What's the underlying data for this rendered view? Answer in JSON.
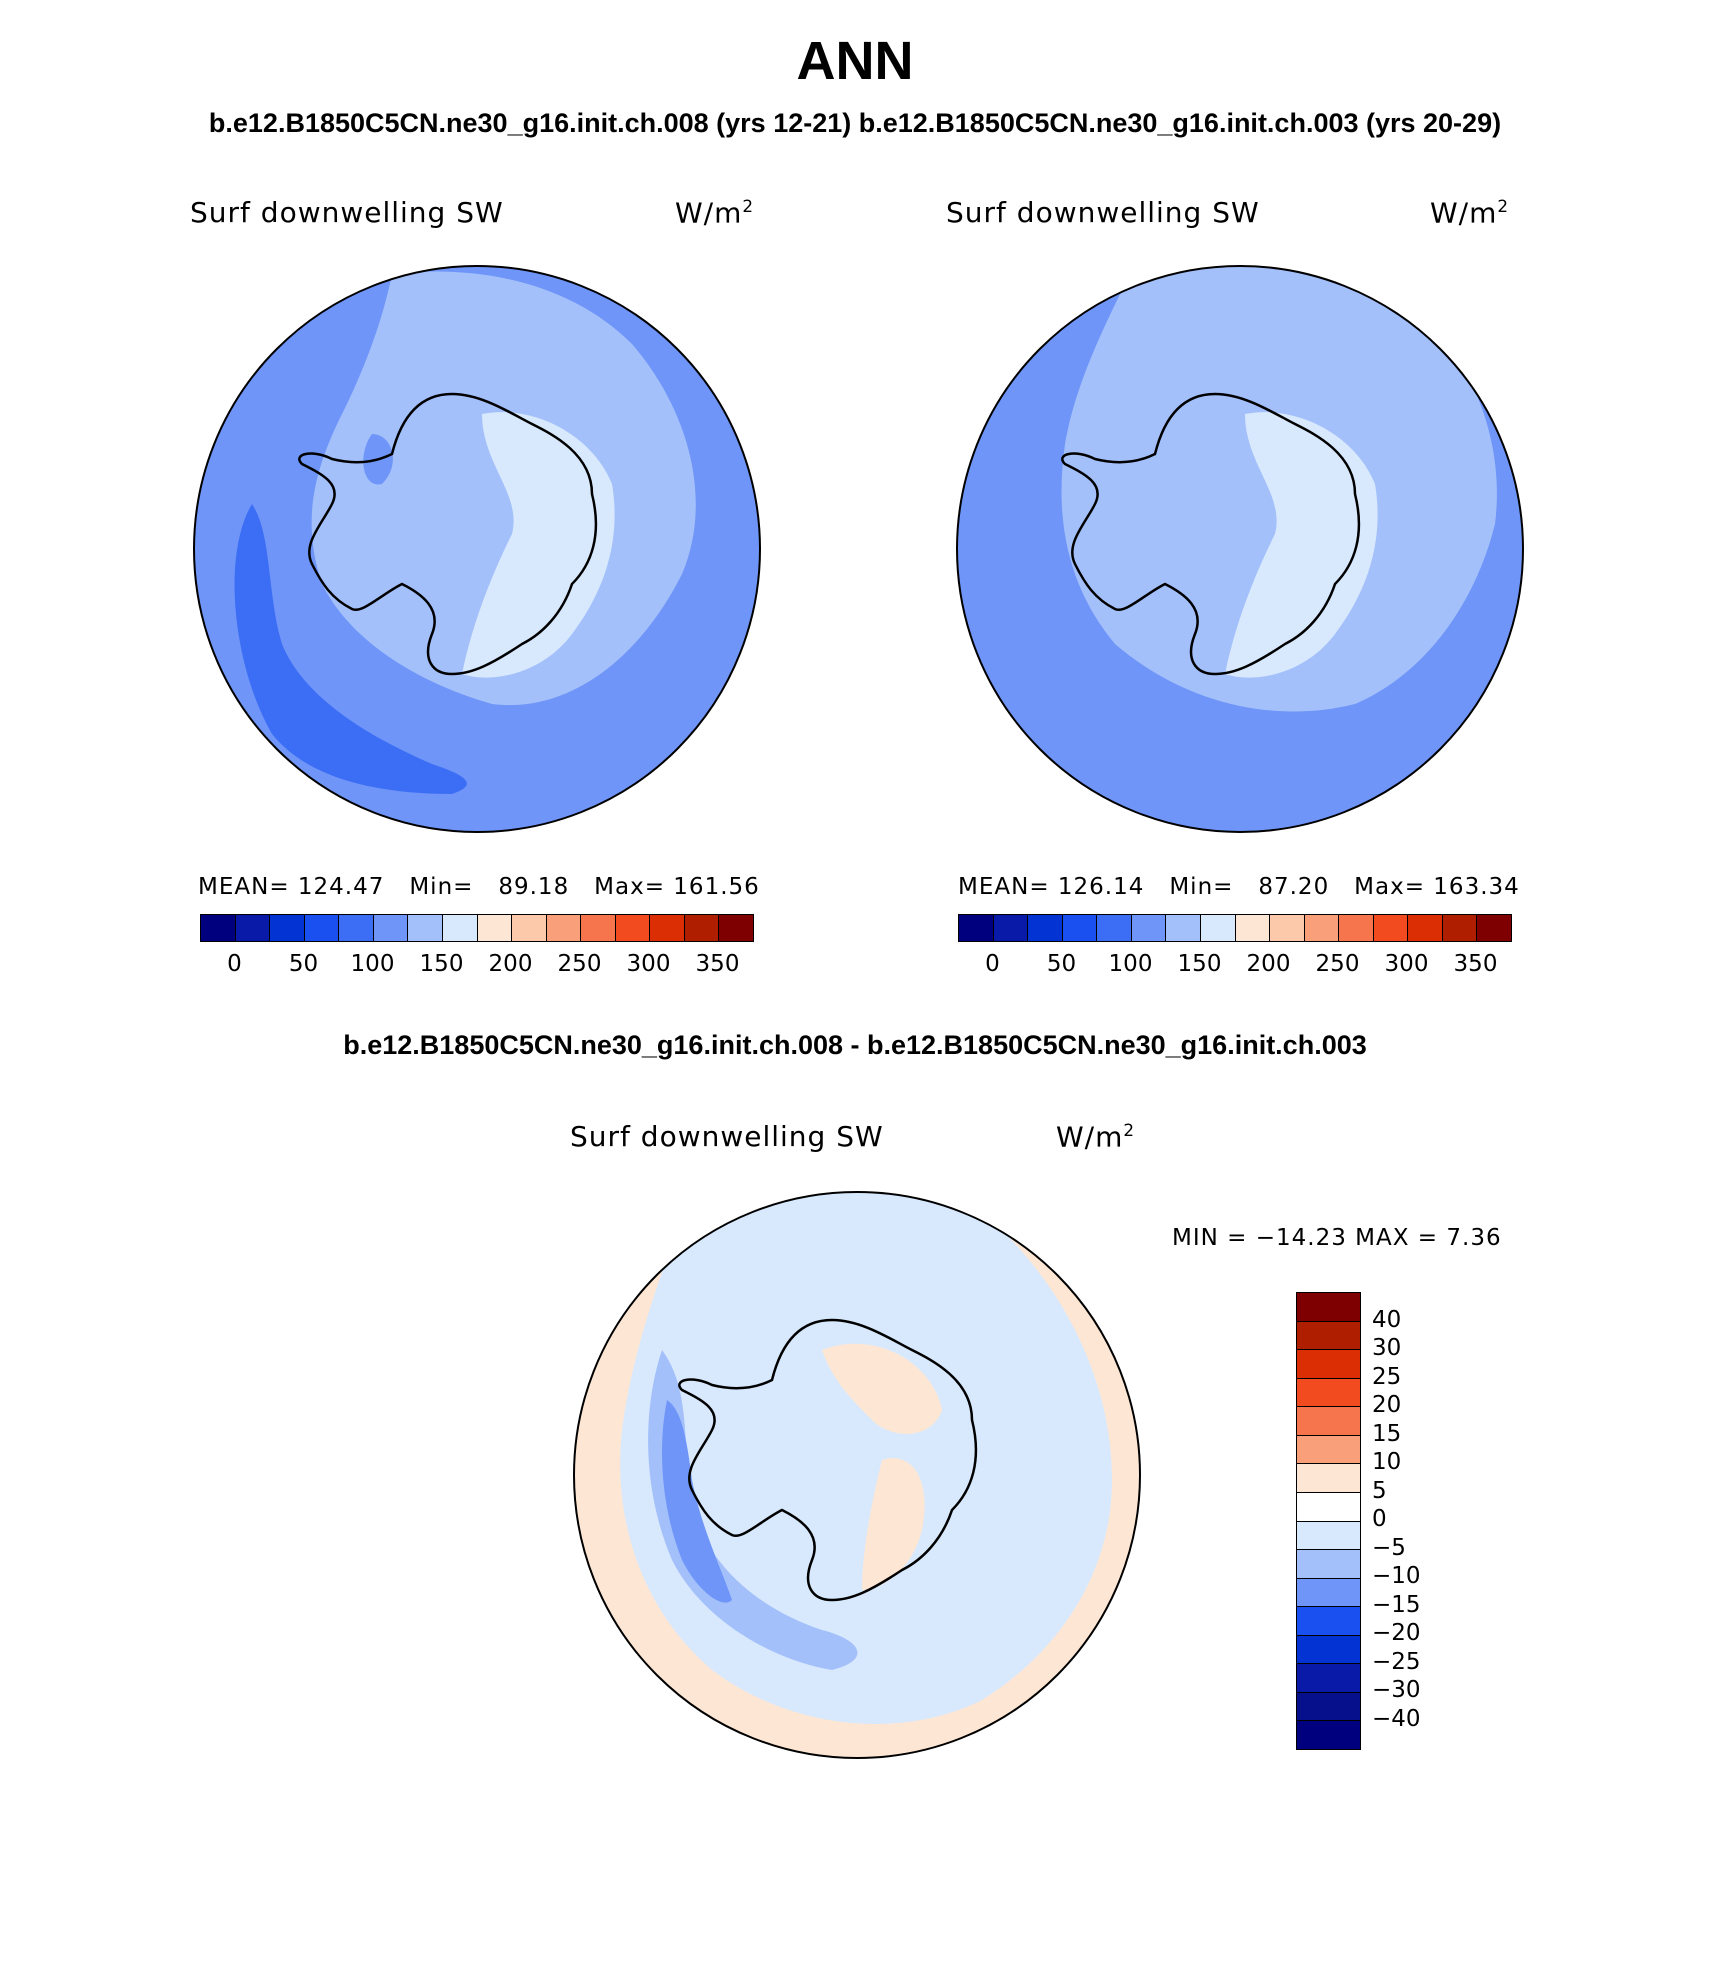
{
  "header": {
    "title": "ANN",
    "subtitle_top": "b.e12.B1850C5CN.ne30_g16.init.ch.008 (yrs 12-21) b.e12.B1850C5CN.ne30_g16.init.ch.003 (yrs 20-29)",
    "subtitle_diff": "b.e12.B1850C5CN.ne30_g16.init.ch.008 - b.e12.B1850C5CN.ne30_g16.init.ch.003"
  },
  "panels": {
    "left": {
      "variable": "Surf downwelling SW",
      "units_base": "W/m",
      "units_exp": "2",
      "mean_label": "MEAN=",
      "mean": "124.47",
      "min_label": "Min=",
      "min": "89.18",
      "max_label": "Max=",
      "max": "161.56"
    },
    "right": {
      "variable": "Surf downwelling SW",
      "units_base": "W/m",
      "units_exp": "2",
      "mean_label": "MEAN=",
      "mean": "126.14",
      "min_label": "Min=",
      "min": "87.20",
      "max_label": "Max=",
      "max": "163.34"
    },
    "diff": {
      "variable": "Surf downwelling SW",
      "units_base": "W/m",
      "units_exp": "2",
      "minmax": "MIN = −14.23 MAX =   7.36"
    }
  },
  "colorbar_abs": {
    "colors": [
      "#00007f",
      "#0a1aa8",
      "#0433d4",
      "#1a4ff0",
      "#3c6ef5",
      "#6e95f7",
      "#a4c0fb",
      "#d8e9fd",
      "#fde7d4",
      "#fcc9ab",
      "#f9a07a",
      "#f6754c",
      "#f24b20",
      "#dc2e05",
      "#b01e00",
      "#7f0000"
    ],
    "ticks": [
      "0",
      "50",
      "100",
      "150",
      "200",
      "250",
      "300",
      "350"
    ]
  },
  "colorbar_diff": {
    "colors": [
      "#7f0000",
      "#b01e00",
      "#dc2e05",
      "#f24b20",
      "#f6754c",
      "#f9a07a",
      "#fde7d4",
      "#ffffff",
      "#d8e9fd",
      "#a4c0fb",
      "#6e95f7",
      "#1a4ff0",
      "#0433d4",
      "#0a1aa8",
      "#06108c",
      "#00007f"
    ],
    "ticks": [
      "40",
      "30",
      "25",
      "20",
      "15",
      "10",
      "5",
      "0",
      "−5",
      "−10",
      "−15",
      "−20",
      "−25",
      "−30",
      "−40"
    ]
  },
  "map_colors": {
    "abs_c1": "#3c6ef5",
    "abs_c2": "#6e95f7",
    "abs_c3": "#a4c0fb",
    "abs_c4": "#d8e9fd",
    "diff_neg1": "#d8e9fd",
    "diff_neg2": "#a4c0fb",
    "diff_neg3": "#6e95f7",
    "diff_pos1": "#fde7d4"
  }
}
